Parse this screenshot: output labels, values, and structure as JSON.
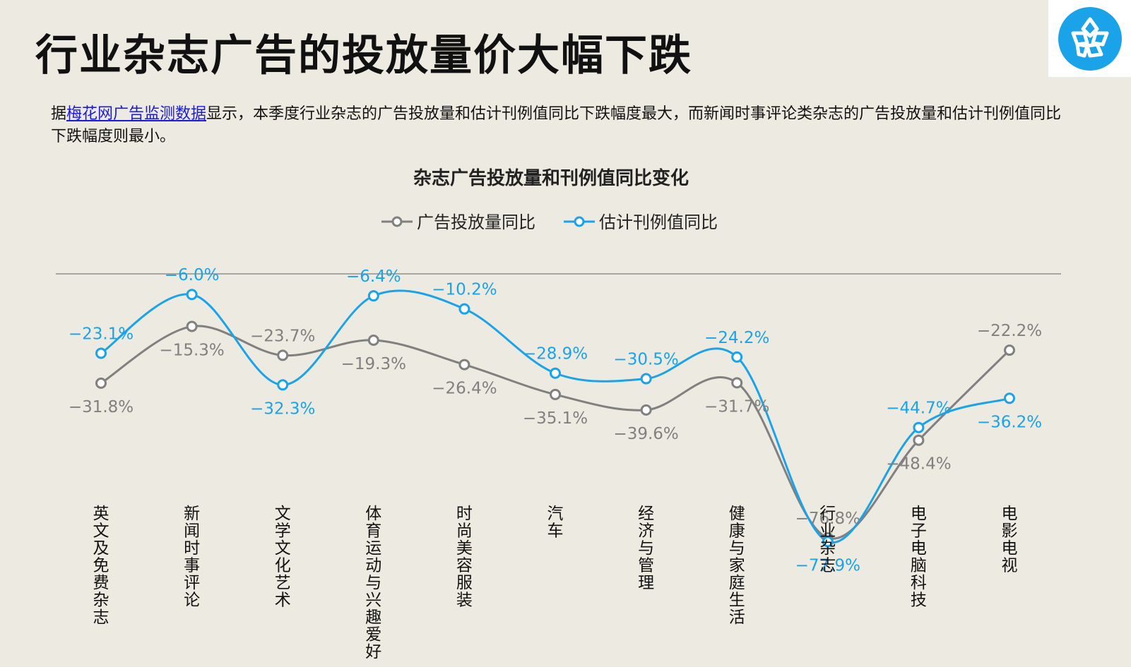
{
  "header": {
    "title": "行业杂志广告的投放量价大幅下跌",
    "desc_prefix": "据",
    "desc_link": "梅花网广告监测数据",
    "desc_suffix": "显示，本季度行业杂志的广告投放量和估计刊例值同比下跌幅度最大，而新闻时事评论类杂志的广告投放量和估计刊例值同比下跌幅度则最小。"
  },
  "logo": {
    "icon": "flower-logo-icon",
    "color": "#1aa3e8"
  },
  "chart_data": {
    "type": "line",
    "title": "杂志广告投放量和刊例值同比变化",
    "categories": [
      "英文及免费杂志",
      "新闻时事评论",
      "文学文化艺术",
      "体育运动与兴趣爱好",
      "时尚美容服装",
      "汽车",
      "经济与管理",
      "健康与家庭生活",
      "行业杂志",
      "电子电脑科技",
      "电影电视"
    ],
    "series": [
      {
        "name": "广告投放量同比",
        "color": "#808080",
        "values": [
          -31.8,
          -15.3,
          -23.7,
          -19.3,
          -26.4,
          -35.1,
          -39.6,
          -31.7,
          -76.8,
          -48.4,
          -22.2
        ],
        "labels": [
          "−31.8%",
          "−15.3%",
          "−23.7%",
          "−19.3%",
          "−26.4%",
          "−35.1%",
          "−39.6%",
          "−31.7%",
          "−76.8%",
          "−48.4%",
          "−22.2%"
        ]
      },
      {
        "name": "估计刊例值同比",
        "color": "#1aa3e8",
        "values": [
          -23.1,
          -6.0,
          -32.3,
          -6.4,
          -10.2,
          -28.9,
          -30.5,
          -24.2,
          -77.9,
          -44.7,
          -36.2
        ],
        "labels": [
          "−23.1%",
          "−6.0%",
          "−32.3%",
          "−6.4%",
          "−10.2%",
          "−28.9%",
          "−30.5%",
          "−24.2%",
          "−77.9%",
          "−44.7%",
          "−36.2%"
        ]
      }
    ],
    "ylim": [
      -82,
      0
    ],
    "legend_position": "top-center",
    "grid": false
  }
}
